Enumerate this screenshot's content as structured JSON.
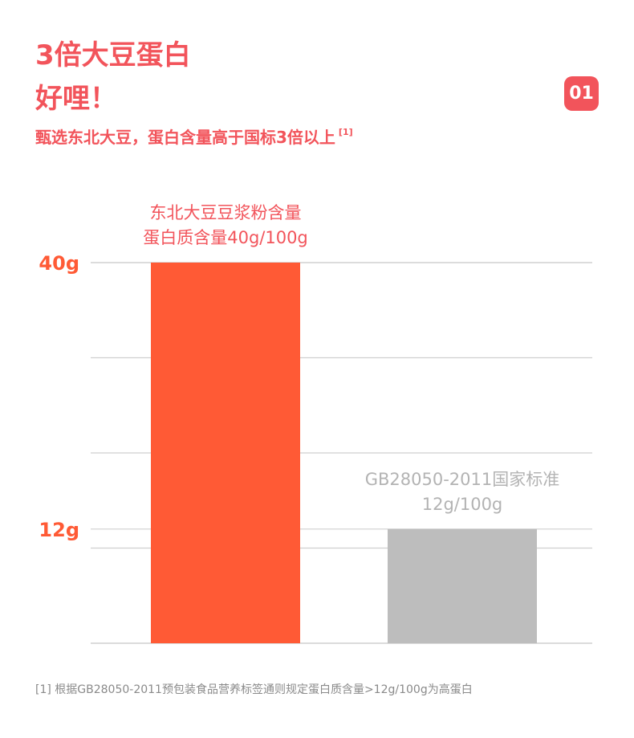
{
  "header": {
    "title_line1": "3倍大豆蛋白",
    "title_line2": "好哩！",
    "badge": "01",
    "subtitle": "甄选东北大豆，蛋白含量高于国标3倍以上",
    "subtitle_ref": "[1]"
  },
  "colors": {
    "accent": "#f2545b",
    "bar_highlight": "#ff5a35",
    "bar_neutral": "#bdbdbd",
    "label_neutral": "#b3b3b3",
    "grid": "#cfcfcf"
  },
  "chart_data": {
    "type": "bar",
    "categories": [
      "东北大豆豆浆粉",
      "GB28050-2011国家标准"
    ],
    "values": [
      40,
      12
    ],
    "unit": "g/100g",
    "ylim": [
      0,
      40
    ],
    "yticks": [
      40,
      12
    ],
    "ytick_labels": [
      "40g",
      "12g"
    ],
    "grid": true,
    "bar_labels": [
      [
        "东北大豆豆浆粉含量",
        "蛋白质含量40g/100g"
      ],
      [
        "GB28050-2011国家标准",
        "12g/100g"
      ]
    ]
  },
  "footnote": "[1] 根据GB28050-2011预包装食品营养标签通则规定蛋白质含量>12g/100g为高蛋白"
}
